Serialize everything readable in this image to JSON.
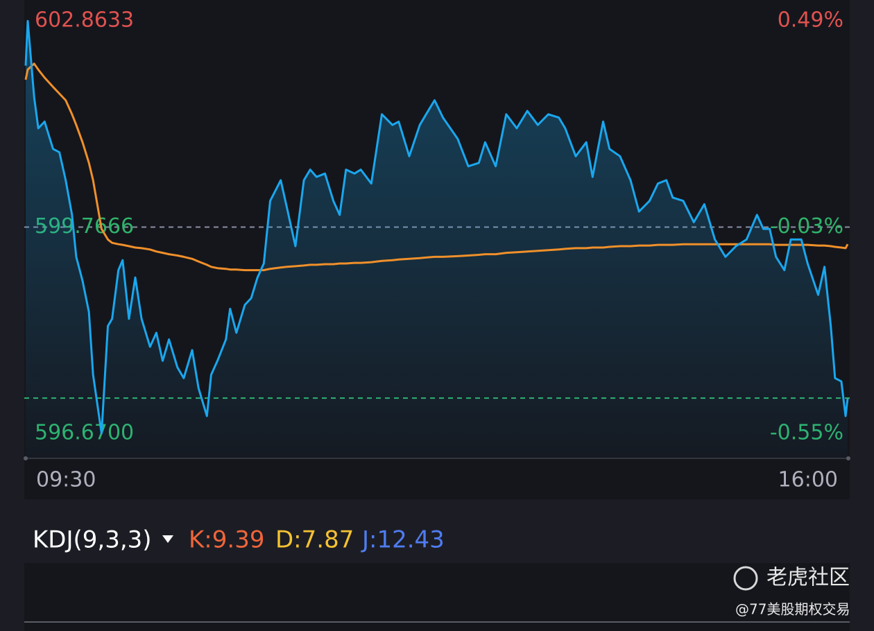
{
  "chart_data": {
    "type": "line",
    "x": [
      "09:30",
      "09:31",
      "09:34",
      "09:36",
      "09:39",
      "09:43",
      "09:46",
      "09:49",
      "09:52",
      "09:54",
      "09:57",
      "10:00",
      "10:02",
      "10:06",
      "10:09",
      "10:11",
      "10:14",
      "10:16",
      "10:19",
      "10:22",
      "10:25",
      "10:29",
      "10:32",
      "10:35",
      "10:38",
      "10:42",
      "10:45",
      "10:49",
      "10:52",
      "10:56",
      "10:58",
      "11:01",
      "11:05",
      "11:07",
      "11:10",
      "11:14",
      "11:17",
      "11:20",
      "11:23",
      "11:26",
      "11:31",
      "11:34",
      "11:38",
      "11:42",
      "11:45",
      "11:48",
      "11:52",
      "11:56",
      "11:59",
      "12:02",
      "12:06",
      "12:09",
      "12:14",
      "12:19",
      "12:24",
      "12:27",
      "12:32",
      "12:37",
      "12:40",
      "12:44",
      "12:48",
      "12:55",
      "13:00",
      "13:05",
      "13:08",
      "13:13",
      "13:18",
      "13:23",
      "13:28",
      "13:33",
      "13:38",
      "13:43",
      "13:46",
      "13:51",
      "13:56",
      "13:59",
      "14:04",
      "14:07",
      "14:12",
      "14:17",
      "14:21",
      "14:26",
      "14:30",
      "14:34",
      "14:37",
      "14:42",
      "14:47",
      "14:52",
      "14:57",
      "15:02",
      "15:07",
      "15:12",
      "15:17",
      "15:20",
      "15:23",
      "15:26",
      "15:30",
      "15:33",
      "15:38",
      "15:41",
      "15:46",
      "15:49",
      "15:52",
      "15:54",
      "15:57",
      "15:59",
      "16:00"
    ],
    "series": [
      {
        "color": "#1aa7ee",
        "values": [
          602.19,
          602.86,
          601.72,
          601.25,
          601.35,
          600.94,
          600.89,
          600.47,
          599.95,
          599.32,
          598.96,
          598.49,
          597.55,
          596.67,
          598.28,
          598.39,
          599.12,
          599.27,
          598.39,
          599.01,
          598.39,
          597.97,
          598.18,
          597.76,
          598.08,
          597.66,
          597.5,
          597.92,
          597.35,
          596.93,
          597.55,
          597.76,
          598.08,
          598.54,
          598.18,
          598.6,
          598.7,
          599.01,
          599.22,
          600.16,
          600.47,
          600.05,
          599.48,
          600.47,
          600.63,
          600.52,
          600.57,
          600.16,
          599.95,
          600.63,
          600.57,
          600.63,
          600.42,
          601.46,
          601.3,
          601.35,
          600.83,
          601.3,
          601.46,
          601.67,
          601.41,
          601.09,
          600.68,
          600.73,
          601.04,
          600.68,
          601.46,
          601.25,
          601.51,
          601.3,
          601.46,
          601.41,
          601.25,
          600.83,
          601.04,
          600.52,
          601.35,
          600.94,
          600.83,
          600.47,
          600.0,
          600.16,
          600.42,
          600.47,
          600.21,
          600.16,
          599.84,
          600.11,
          599.58,
          599.32,
          599.48,
          599.58,
          599.95,
          599.74,
          599.74,
          599.32,
          599.12,
          599.58,
          599.58,
          599.22,
          598.75,
          599.17,
          598.28,
          597.5,
          597.45,
          596.93,
          597.19
        ]
      },
      {
        "color": "#f0902a",
        "values": [
          601.98,
          602.13,
          602.22,
          602.13,
          602.01,
          601.87,
          601.77,
          601.67,
          601.46,
          601.3,
          601.04,
          600.73,
          600.47,
          599.74,
          599.58,
          599.53,
          599.51,
          599.5,
          599.48,
          599.46,
          599.45,
          599.43,
          599.4,
          599.38,
          599.36,
          599.34,
          599.32,
          599.29,
          599.25,
          599.2,
          599.17,
          599.15,
          599.14,
          599.13,
          599.13,
          599.12,
          599.12,
          599.12,
          599.12,
          599.14,
          599.16,
          599.17,
          599.18,
          599.19,
          599.2,
          599.2,
          599.21,
          599.21,
          599.22,
          599.22,
          599.23,
          599.23,
          599.24,
          599.26,
          599.27,
          599.28,
          599.29,
          599.3,
          599.31,
          599.32,
          599.32,
          599.33,
          599.34,
          599.35,
          599.36,
          599.36,
          599.38,
          599.39,
          599.4,
          599.41,
          599.42,
          599.43,
          599.44,
          599.45,
          599.45,
          599.46,
          599.46,
          599.47,
          599.48,
          599.48,
          599.49,
          599.49,
          599.5,
          599.5,
          599.5,
          599.51,
          599.51,
          599.51,
          599.51,
          599.51,
          599.51,
          599.51,
          599.51,
          599.51,
          599.51,
          599.5,
          599.5,
          599.5,
          599.5,
          599.5,
          599.49,
          599.49,
          599.48,
          599.47,
          599.46,
          599.45,
          599.51
        ]
      }
    ],
    "ylim": [
      596.67,
      602.8633
    ],
    "yticks": [
      {
        "value": 596.67,
        "label": "596.6700"
      },
      599.7666,
      {
        "value": 602.8633,
        "label": "602.8633"
      }
    ],
    "y2lim": [
      -0.55,
      0.49
    ],
    "y2ticks": [
      {
        "value": -0.55,
        "label": "-0.55%"
      },
      {
        "value": -0.03,
        "label": "-0.03%"
      },
      {
        "value": 0.49,
        "label": "0.49%"
      }
    ],
    "reference_line": 597.2,
    "indicator": {
      "title": "KDJ(9,3,3)",
      "values": [
        {
          "value": 9.39,
          "label": "K:9.39",
          "color": "#f0653a"
        },
        {
          "value": 7.87,
          "label": "D:7.87",
          "color": "#f5c232"
        },
        {
          "value": 12.43,
          "label": "J:12.43",
          "color": "#4f7cf0"
        }
      ]
    },
    "watermark": {
      "brand": "老虎社区",
      "author": "@77美股期权交易"
    }
  }
}
